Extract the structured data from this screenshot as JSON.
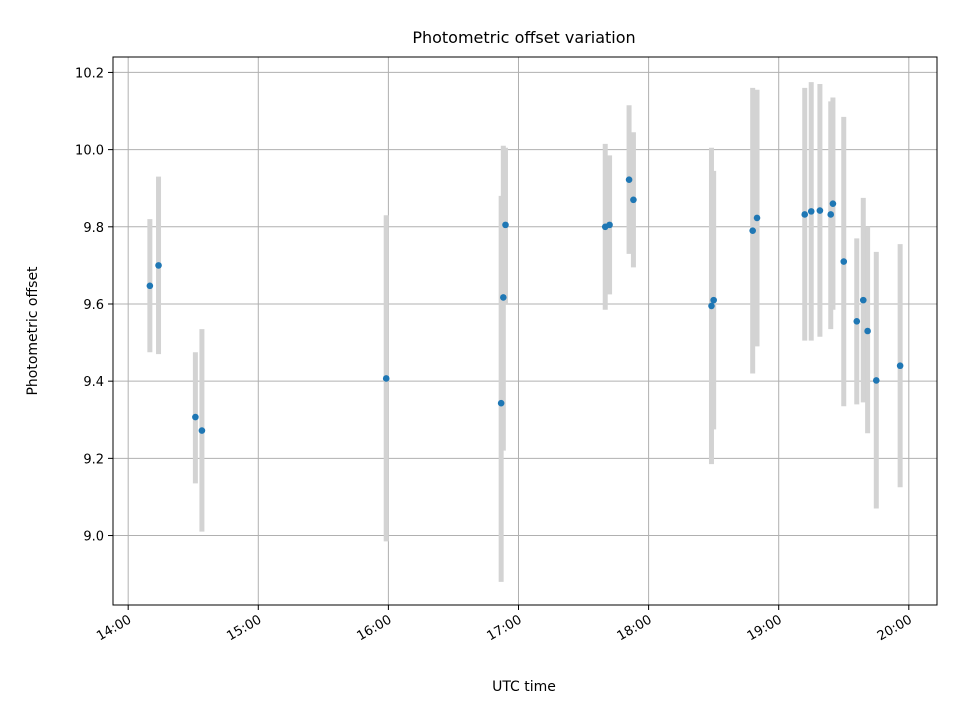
{
  "chart_data": {
    "type": "scatter",
    "title": "Photometric offset variation",
    "xlabel": "UTC time",
    "ylabel": "Photometric offset",
    "x_unit": "UTC hour",
    "xlim": [
      "13:53",
      "20:13"
    ],
    "ylim": [
      8.82,
      10.24
    ],
    "x_ticks": [
      "14:00",
      "15:00",
      "16:00",
      "17:00",
      "18:00",
      "19:00",
      "20:00"
    ],
    "y_ticks": [
      "9.0",
      "9.2",
      "9.4",
      "9.6",
      "9.8",
      "10.0",
      "10.2"
    ],
    "grid": true,
    "point_color": "#1f77b4",
    "errorbar_color": "#d3d3d3",
    "series": [
      {
        "points": [
          {
            "time": "14:10",
            "y": 9.647,
            "ylow": 9.475,
            "yhigh": 9.82
          },
          {
            "time": "14:14",
            "y": 9.7,
            "ylow": 9.47,
            "yhigh": 9.93
          },
          {
            "time": "14:31",
            "y": 9.307,
            "ylow": 9.135,
            "yhigh": 9.475
          },
          {
            "time": "14:34",
            "y": 9.272,
            "ylow": 9.01,
            "yhigh": 9.535
          },
          {
            "time": "15:59",
            "y": 9.407,
            "ylow": 8.985,
            "yhigh": 9.83
          },
          {
            "time": "16:52",
            "y": 9.343,
            "ylow": 8.88,
            "yhigh": 9.88
          },
          {
            "time": "16:53",
            "y": 9.617,
            "ylow": 9.22,
            "yhigh": 10.01
          },
          {
            "time": "16:54",
            "y": 9.805,
            "ylow": 9.6,
            "yhigh": 10.005
          },
          {
            "time": "17:40",
            "y": 9.8,
            "ylow": 9.585,
            "yhigh": 10.015
          },
          {
            "time": "17:42",
            "y": 9.805,
            "ylow": 9.625,
            "yhigh": 9.985
          },
          {
            "time": "17:51",
            "y": 9.922,
            "ylow": 9.73,
            "yhigh": 10.115
          },
          {
            "time": "17:53",
            "y": 9.87,
            "ylow": 9.695,
            "yhigh": 10.045
          },
          {
            "time": "18:29",
            "y": 9.595,
            "ylow": 9.185,
            "yhigh": 10.005
          },
          {
            "time": "18:30",
            "y": 9.61,
            "ylow": 9.275,
            "yhigh": 9.945
          },
          {
            "time": "18:48",
            "y": 9.79,
            "ylow": 9.42,
            "yhigh": 10.16
          },
          {
            "time": "18:50",
            "y": 9.823,
            "ylow": 9.49,
            "yhigh": 10.155
          },
          {
            "time": "19:12",
            "y": 9.832,
            "ylow": 9.505,
            "yhigh": 10.16
          },
          {
            "time": "19:15",
            "y": 9.84,
            "ylow": 9.505,
            "yhigh": 10.175
          },
          {
            "time": "19:19",
            "y": 9.842,
            "ylow": 9.515,
            "yhigh": 10.17
          },
          {
            "time": "19:24",
            "y": 9.832,
            "ylow": 9.535,
            "yhigh": 10.125
          },
          {
            "time": "19:25",
            "y": 9.86,
            "ylow": 9.585,
            "yhigh": 10.135
          },
          {
            "time": "19:30",
            "y": 9.71,
            "ylow": 9.335,
            "yhigh": 10.085
          },
          {
            "time": "19:36",
            "y": 9.555,
            "ylow": 9.34,
            "yhigh": 9.77
          },
          {
            "time": "19:39",
            "y": 9.61,
            "ylow": 9.345,
            "yhigh": 9.875
          },
          {
            "time": "19:41",
            "y": 9.53,
            "ylow": 9.265,
            "yhigh": 9.8
          },
          {
            "time": "19:45",
            "y": 9.402,
            "ylow": 9.07,
            "yhigh": 9.735
          },
          {
            "time": "19:56",
            "y": 9.44,
            "ylow": 9.125,
            "yhigh": 9.755
          }
        ]
      }
    ]
  }
}
